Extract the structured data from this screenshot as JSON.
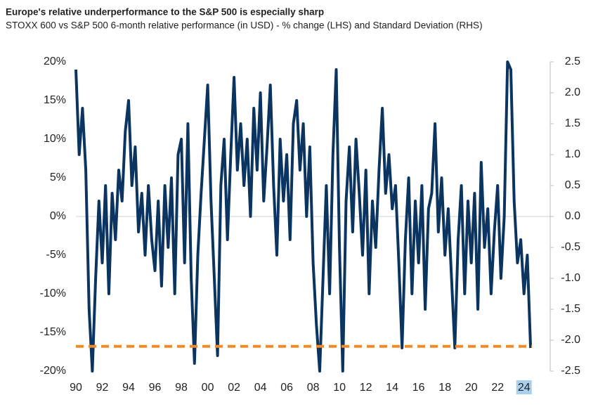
{
  "chart_data": {
    "type": "line",
    "title": "Europe's relative underperformance to the S&P 500 is especially sharp",
    "subtitle": "STOXX 600 vs S&P 500 6-month relative performance (in USD) - % change (LHS) and Standard Deviation (RHS)",
    "x": [
      1990,
      1990.25,
      1990.5,
      1990.75,
      1991,
      1991.25,
      1991.5,
      1991.75,
      1992,
      1992.25,
      1992.5,
      1992.75,
      1993,
      1993.25,
      1993.5,
      1993.75,
      1994,
      1994.25,
      1994.5,
      1994.75,
      1995,
      1995.25,
      1995.5,
      1995.75,
      1996,
      1996.25,
      1996.5,
      1996.75,
      1997,
      1997.25,
      1997.5,
      1997.75,
      1998,
      1998.25,
      1998.5,
      1998.75,
      1999,
      1999.25,
      1999.5,
      1999.75,
      2000,
      2000.25,
      2000.5,
      2000.75,
      2001,
      2001.25,
      2001.5,
      2001.75,
      2002,
      2002.25,
      2002.5,
      2002.75,
      2003,
      2003.25,
      2003.5,
      2003.75,
      2004,
      2004.25,
      2004.5,
      2004.75,
      2005,
      2005.25,
      2005.5,
      2005.75,
      2006,
      2006.25,
      2006.5,
      2006.75,
      2007,
      2007.25,
      2007.5,
      2007.75,
      2008,
      2008.25,
      2008.5,
      2008.75,
      2009,
      2009.25,
      2009.5,
      2009.75,
      2010,
      2010.25,
      2010.5,
      2010.75,
      2011,
      2011.25,
      2011.5,
      2011.75,
      2012,
      2012.25,
      2012.5,
      2012.75,
      2013,
      2013.25,
      2013.5,
      2013.75,
      2014,
      2014.25,
      2014.5,
      2014.75,
      2015,
      2015.25,
      2015.5,
      2015.75,
      2016,
      2016.25,
      2016.5,
      2016.75,
      2017,
      2017.25,
      2017.5,
      2017.75,
      2018,
      2018.25,
      2018.5,
      2018.75,
      2019,
      2019.25,
      2019.5,
      2019.75,
      2020,
      2020.25,
      2020.5,
      2020.75,
      2021,
      2021.25,
      2021.5,
      2021.75,
      2022,
      2022.25,
      2022.5,
      2022.75,
      2023,
      2023.25,
      2023.5,
      2023.75,
      2024,
      2024.25,
      2024.5
    ],
    "series": [
      {
        "color": "#0b3560",
        "values": [
          19,
          8,
          14,
          6,
          -12,
          -20,
          -8,
          2,
          -6,
          4,
          -10,
          3,
          -3,
          6,
          2,
          11,
          15,
          4,
          9,
          -2,
          3,
          -5,
          4,
          -3,
          -7,
          2,
          -9,
          4,
          -4,
          5,
          -10,
          8,
          10,
          -6,
          12,
          -8,
          -19,
          -5,
          3,
          10,
          17,
          2,
          -8,
          -18,
          4,
          10,
          -3,
          8,
          18,
          6,
          12,
          4,
          10,
          0,
          14,
          6,
          16,
          2,
          9,
          17,
          4,
          -5,
          10,
          2,
          8,
          -3,
          12,
          15,
          6,
          12,
          0,
          9,
          -6,
          -14,
          -20,
          -8,
          4,
          -10,
          8,
          19,
          -4,
          -20,
          2,
          9,
          -2,
          10,
          3,
          -5,
          6,
          -10,
          2,
          -4,
          6,
          14,
          3,
          8,
          1,
          4,
          -6,
          -17,
          -3,
          5,
          -10,
          2,
          -6,
          4,
          -12,
          1,
          3,
          12,
          -2,
          5,
          -5,
          1,
          -8,
          -17,
          -3,
          4,
          -10,
          2,
          -6,
          3,
          -12,
          7,
          -4,
          1,
          -10,
          -2,
          4,
          -8,
          0,
          20,
          19,
          2,
          -6,
          -3,
          -10,
          -5,
          -17
        ]
      }
    ],
    "reference_line": {
      "value": -2.1,
      "axis": "y2",
      "color": "#f08a2b",
      "dashed": true
    },
    "xlim": [
      1990,
      2024.6
    ],
    "xticks": [
      {
        "value": 1990,
        "label": "90"
      },
      {
        "value": 1992,
        "label": "92"
      },
      {
        "value": 1994,
        "label": "94"
      },
      {
        "value": 1996,
        "label": "96"
      },
      {
        "value": 1998,
        "label": "98"
      },
      {
        "value": 2000,
        "label": "00"
      },
      {
        "value": 2002,
        "label": "02"
      },
      {
        "value": 2004,
        "label": "04"
      },
      {
        "value": 2006,
        "label": "06"
      },
      {
        "value": 2008,
        "label": "08"
      },
      {
        "value": 2010,
        "label": "10"
      },
      {
        "value": 2012,
        "label": "12"
      },
      {
        "value": 2014,
        "label": "14"
      },
      {
        "value": 2016,
        "label": "16"
      },
      {
        "value": 2018,
        "label": "18"
      },
      {
        "value": 2020,
        "label": "20"
      },
      {
        "value": 2022,
        "label": "22"
      },
      {
        "value": 2024,
        "label": "24"
      }
    ],
    "highlight_xtick": 17,
    "ylim": [
      -20,
      20
    ],
    "yticks": [
      {
        "value": -20,
        "label": "-20%"
      },
      {
        "value": -15,
        "label": "-15%"
      },
      {
        "value": -10,
        "label": "-10%"
      },
      {
        "value": -5,
        "label": "-5%"
      },
      {
        "value": 0,
        "label": "0%"
      },
      {
        "value": 5,
        "label": "5%"
      },
      {
        "value": 10,
        "label": "10%"
      },
      {
        "value": 15,
        "label": "15%"
      },
      {
        "value": 20,
        "label": "20%"
      }
    ],
    "y2lim": [
      -2.5,
      2.5
    ],
    "y2ticks": [
      -2.5,
      {
        "value": -2,
        "label": "-2.0"
      },
      -1.5,
      {
        "value": -1,
        "label": "-1.0"
      },
      -0.5,
      {
        "value": 0,
        "label": "0.0"
      },
      0.5,
      {
        "value": 1,
        "label": "1.0"
      },
      1.5,
      {
        "value": 2,
        "label": "2.0"
      },
      2.5
    ],
    "zero_line": true
  }
}
